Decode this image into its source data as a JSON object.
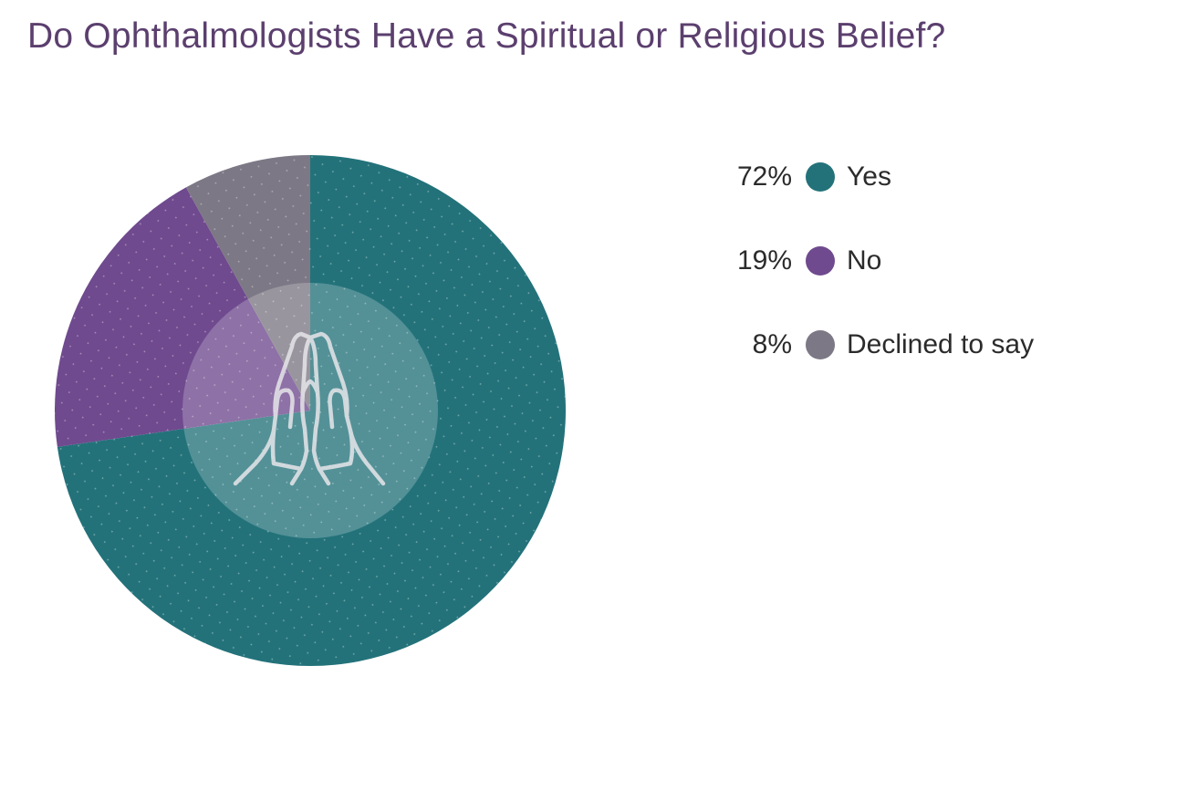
{
  "chart_data": {
    "type": "pie",
    "title": "Do Ophthalmologists Have a Spiritual or Religious Belief?",
    "slices": [
      {
        "label": "Yes",
        "percent_label": "72%",
        "value": 72,
        "color": "#23727a"
      },
      {
        "label": "No",
        "percent_label": "19%",
        "value": 19,
        "color": "#6f4a8e"
      },
      {
        "label": "Declined to say",
        "percent_label": "8%",
        "value": 8,
        "color": "#7d7885"
      }
    ],
    "center_icon": "praying-hands-icon",
    "legend_position": "right"
  }
}
